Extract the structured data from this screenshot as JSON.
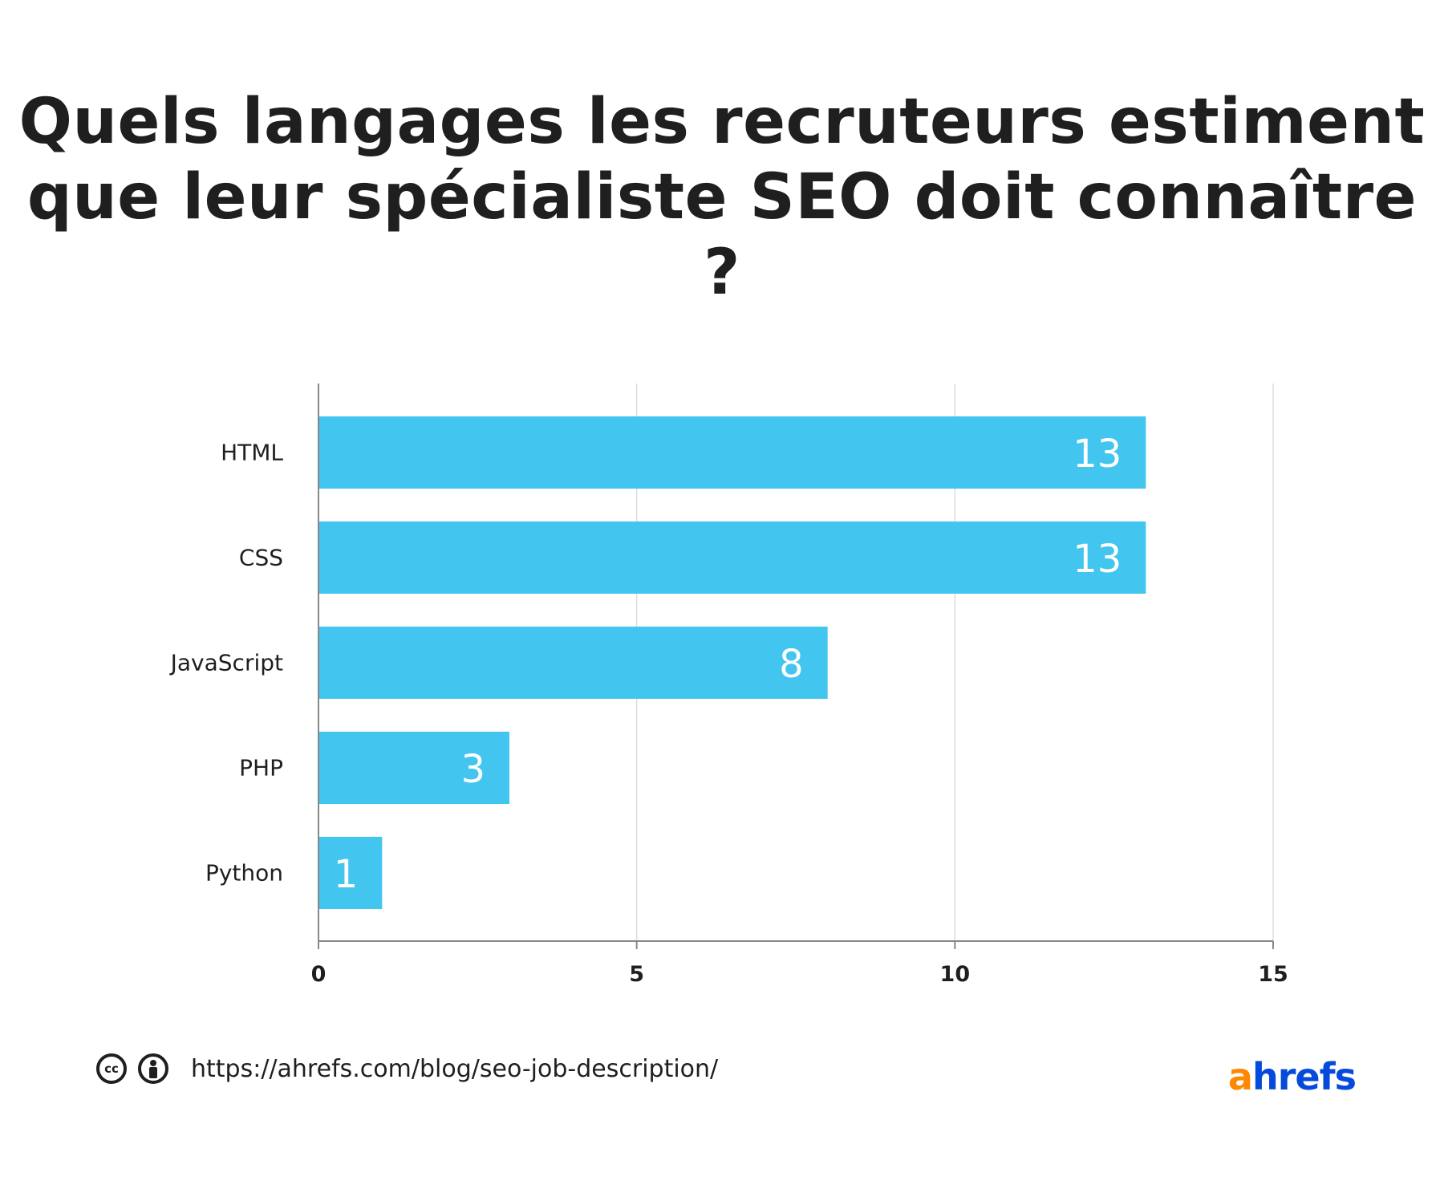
{
  "title_lines": [
    "Quels langages les recruteurs estiment",
    "que leur spécialiste SEO doit connaître ?"
  ],
  "chart_data": {
    "type": "bar",
    "orientation": "horizontal",
    "categories": [
      "HTML",
      "CSS",
      "JavaScript",
      "PHP",
      "Python"
    ],
    "values": [
      13,
      13,
      8,
      3,
      1
    ],
    "data_labels": [
      "13",
      "13",
      "8",
      "3",
      "1"
    ],
    "title": "Quels langages les recruteurs estiment que leur spécialiste SEO doit connaître ?",
    "xlabel": "",
    "ylabel": "",
    "xlim": [
      0,
      15
    ],
    "xticks": [
      0,
      5,
      10,
      15
    ],
    "xtick_labels": [
      "0",
      "5",
      "10",
      "15"
    ],
    "grid": true,
    "legend": "none",
    "bar_color": "#42c5ef",
    "label_color": "#ffffff",
    "grid_color": "#dddddd",
    "axis_color": "#888888"
  },
  "footer": {
    "license_icons": [
      "cc-icon",
      "by-icon"
    ],
    "cc_text": "cc",
    "source_url": "https://ahrefs.com/blog/seo-job-description/"
  },
  "logo": {
    "first": "a",
    "rest": "hrefs",
    "first_color": "#ff8800",
    "rest_color": "#054ada"
  }
}
